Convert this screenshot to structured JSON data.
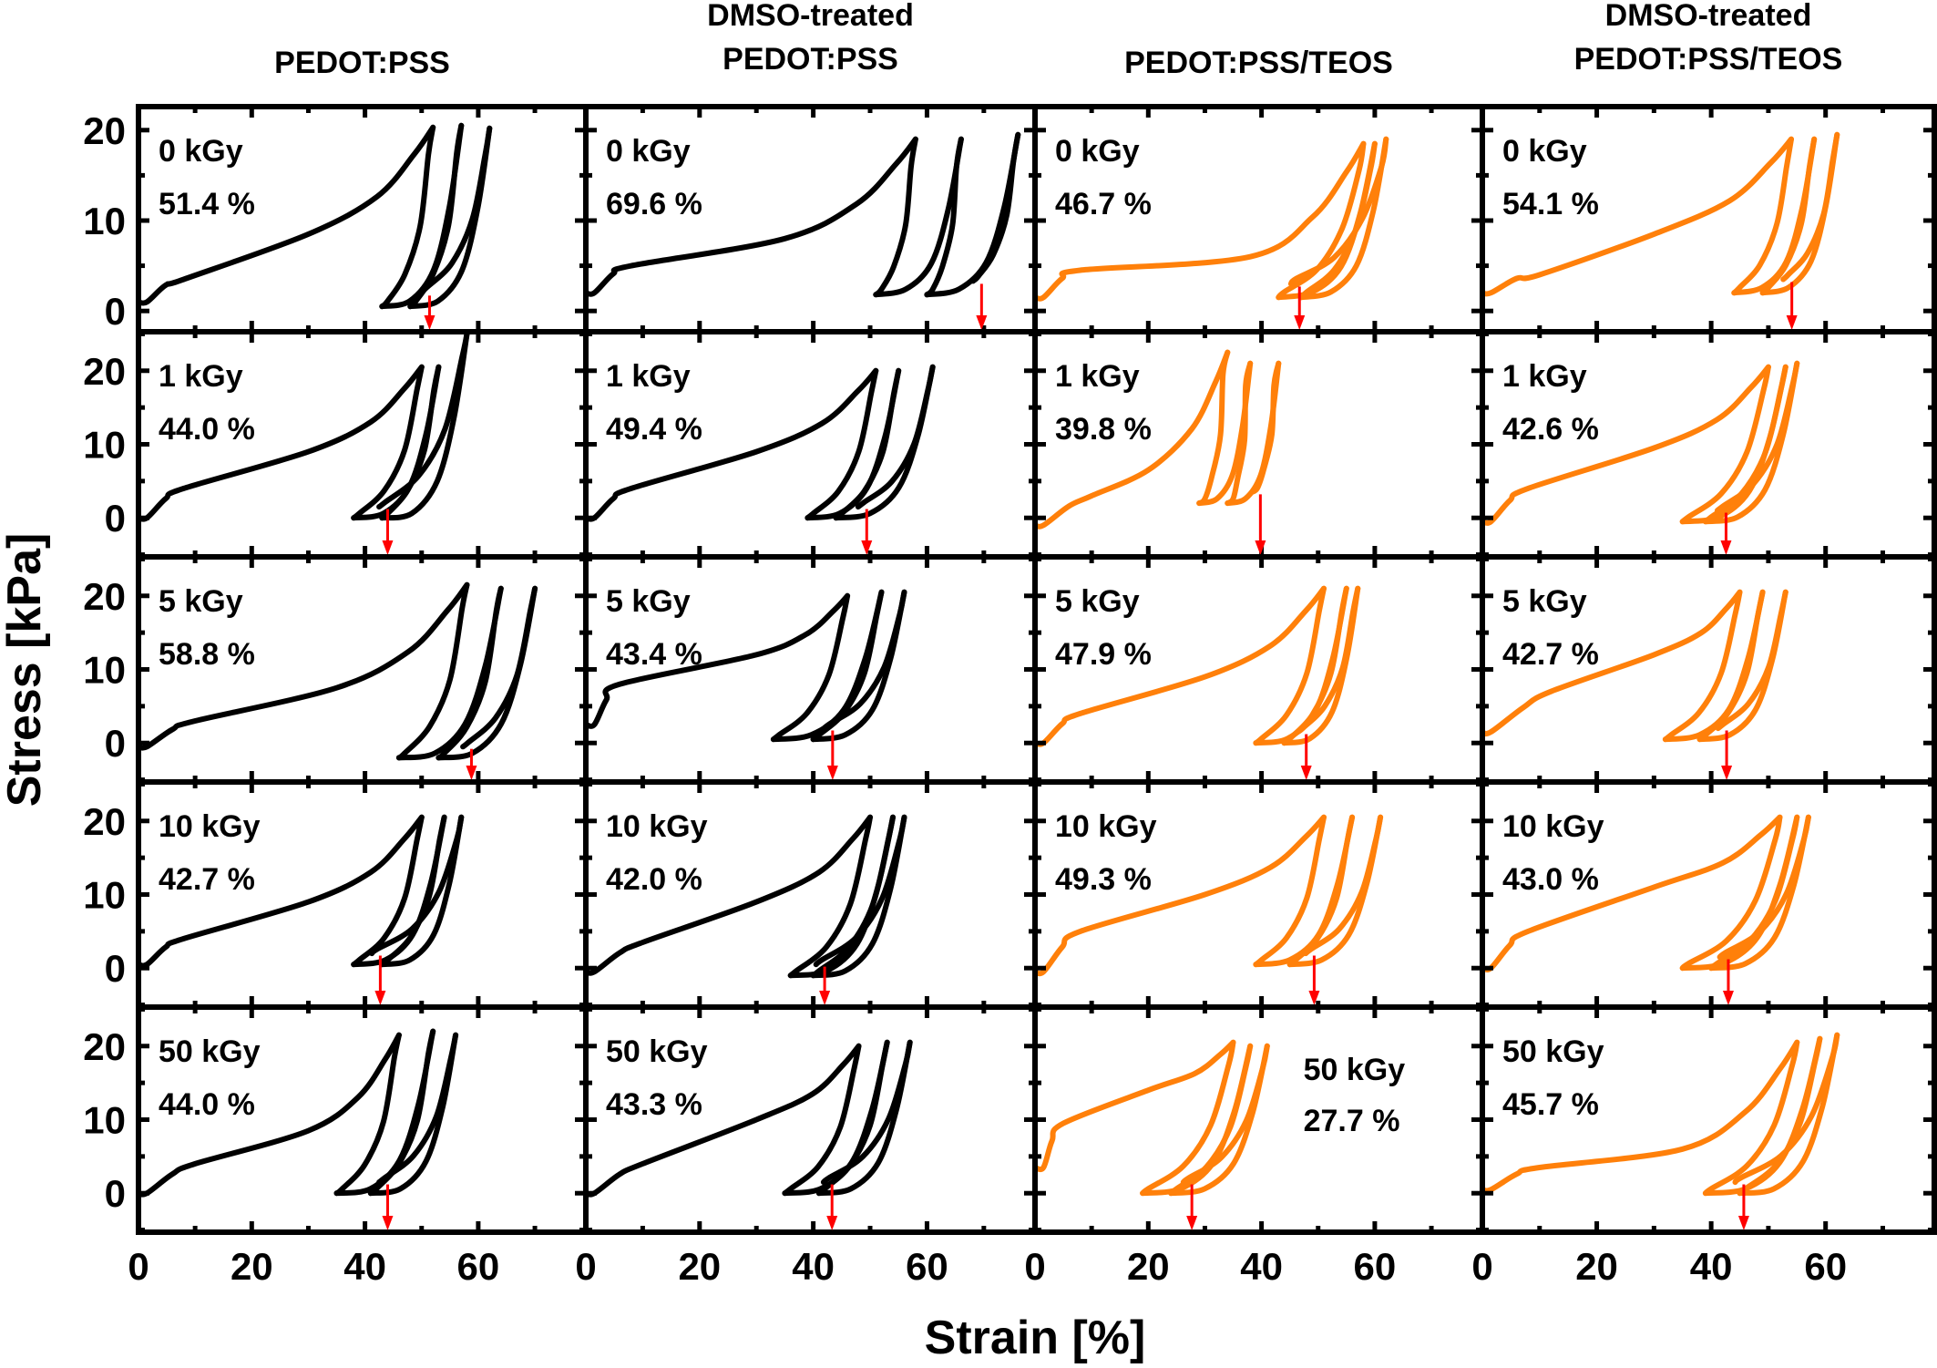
{
  "chart_data": {
    "type": "line",
    "title": "",
    "xlabel": "Strain [%]",
    "ylabel": "Stress [kPa]",
    "xlim": [
      0,
      79
    ],
    "xticks": [
      0,
      20,
      40,
      60
    ],
    "xminor_step": 10,
    "ylim_first_row": [
      -2.3,
      22.6
    ],
    "ylim_other_rows": [
      -5.3,
      25.3
    ],
    "yticks": [
      0,
      10,
      20
    ],
    "grid": false,
    "legend": "none",
    "colors": {
      "PEDOT:PSS": "#000000",
      "DMSO-treated PEDOT:PSS": "#000000",
      "PEDOT:PSS/TEOS": "#FF800A",
      "DMSO-treated PEDOT:PSS/TEOS": "#FF800A",
      "arrow": "#FF0000"
    },
    "columns": [
      {
        "title_lines": [
          "PEDOT:PSS"
        ],
        "color": "#000000"
      },
      {
        "title_lines": [
          "DMSO-treated",
          "PEDOT:PSS"
        ],
        "color": "#000000"
      },
      {
        "title_lines": [
          "PEDOT:PSS/TEOS"
        ],
        "color": "#FF800A"
      },
      {
        "title_lines": [
          "DMSO-treated",
          "PEDOT:PSS/TEOS"
        ],
        "color": "#FF800A"
      }
    ],
    "rows": [
      "0 kGy",
      "1 kGy",
      "5 kGy",
      "10 kGy",
      "50 kGy"
    ],
    "panels": [
      [
        {
          "dose": "0 kGy",
          "recovery": "51.4 %",
          "recovery_strain": 51.4,
          "start_stress": 1.0,
          "knee": [
            8,
            3.5
          ],
          "mid": [
            30,
            8.5
          ],
          "peaks": [
            [
              52,
              20.3
            ],
            [
              57,
              20.5
            ],
            [
              62,
              20.2
            ]
          ],
          "valleys": [
            [
              43,
              0.5
            ],
            [
              48,
              0.5
            ]
          ],
          "annot_pos": "top-left"
        },
        {
          "dose": "1 kGy",
          "recovery": "44.0 %",
          "recovery_strain": 44.0,
          "start_stress": 0.0,
          "knee": [
            8,
            4
          ],
          "mid": [
            30,
            9
          ],
          "peaks": [
            [
              50,
              20.5
            ],
            [
              53,
              20.5
            ],
            [
              58,
              25
            ]
          ],
          "valleys": [
            [
              38,
              0
            ],
            [
              43,
              0
            ]
          ],
          "annot_pos": "top-left"
        },
        {
          "dose": "5 kGy",
          "recovery": "58.8 %",
          "recovery_strain": 58.8,
          "start_stress": -0.5,
          "knee": [
            10,
            3
          ],
          "mid": [
            35,
            7.5
          ],
          "peaks": [
            [
              58,
              21.5
            ],
            [
              64,
              21
            ],
            [
              70,
              21
            ]
          ],
          "valleys": [
            [
              46,
              -2
            ],
            [
              53,
              -2
            ]
          ],
          "annot_pos": "top-left"
        },
        {
          "dose": "10 kGy",
          "recovery": "42.7 %",
          "recovery_strain": 42.7,
          "start_stress": 0.5,
          "knee": [
            8,
            4
          ],
          "mid": [
            30,
            9
          ],
          "peaks": [
            [
              50,
              20.5
            ],
            [
              54,
              20.5
            ],
            [
              57,
              20.5
            ]
          ],
          "valleys": [
            [
              38,
              0.5
            ],
            [
              43,
              0.5
            ]
          ],
          "annot_pos": "top-left"
        },
        {
          "dose": "50 kGy",
          "recovery": "44.0 %",
          "recovery_strain": 44.0,
          "start_stress": 0.0,
          "knee": [
            10,
            4
          ],
          "mid": [
            30,
            8.5
          ],
          "peaks": [
            [
              46,
              21.5
            ],
            [
              52,
              22
            ],
            [
              56,
              21.5
            ]
          ],
          "valleys": [
            [
              35,
              0
            ],
            [
              41,
              0
            ]
          ],
          "annot_pos": "top-left"
        }
      ],
      [
        {
          "dose": "0 kGy",
          "recovery": "69.6 %",
          "recovery_strain": 69.6,
          "start_stress": 2.0,
          "knee": [
            8,
            5
          ],
          "mid": [
            35,
            8
          ],
          "peaks": [
            [
              58,
              19
            ],
            [
              66,
              19
            ],
            [
              76,
              19.5
            ]
          ],
          "valleys": [
            [
              51,
              1.8
            ],
            [
              60,
              1.8
            ]
          ],
          "annot_pos": "top-left"
        },
        {
          "dose": "1 kGy",
          "recovery": "49.4 %",
          "recovery_strain": 49.4,
          "start_stress": 0.0,
          "knee": [
            8,
            4
          ],
          "mid": [
            30,
            9
          ],
          "peaks": [
            [
              51,
              20
            ],
            [
              55,
              20
            ],
            [
              61,
              20.5
            ]
          ],
          "valleys": [
            [
              39,
              0
            ],
            [
              44,
              0
            ]
          ],
          "annot_pos": "top-left"
        },
        {
          "dose": "5 kGy",
          "recovery": "43.4 %",
          "recovery_strain": 43.4,
          "start_stress": 2.5,
          "knee": [
            6,
            8
          ],
          "mid": [
            30,
            12
          ],
          "peaks": [
            [
              46,
              20
            ],
            [
              52,
              20.5
            ],
            [
              56,
              20.5
            ]
          ],
          "valleys": [
            [
              33,
              0.5
            ],
            [
              40,
              0.5
            ]
          ],
          "annot_pos": "top-left"
        },
        {
          "dose": "10 kGy",
          "recovery": "42.0 %",
          "recovery_strain": 42.0,
          "start_stress": -0.5,
          "knee": [
            10,
            3.5
          ],
          "mid": [
            30,
            9
          ],
          "peaks": [
            [
              50,
              20.5
            ],
            [
              54,
              20.5
            ],
            [
              56,
              20.5
            ]
          ],
          "valleys": [
            [
              36,
              -1
            ],
            [
              40,
              -1
            ]
          ],
          "annot_pos": "top-left"
        },
        {
          "dose": "50 kGy",
          "recovery": "43.3 %",
          "recovery_strain": 43.3,
          "start_stress": 0.0,
          "knee": [
            10,
            4
          ],
          "mid": [
            30,
            10
          ],
          "peaks": [
            [
              48,
              20
            ],
            [
              53,
              20.5
            ],
            [
              57,
              20.5
            ]
          ],
          "valleys": [
            [
              35,
              0
            ],
            [
              41,
              0
            ]
          ],
          "annot_pos": "top-left"
        }
      ],
      [
        {
          "dose": "0 kGy",
          "recovery": "46.7 %",
          "recovery_strain": 46.7,
          "start_stress": 1.5,
          "knee": [
            8,
            4.5
          ],
          "mid": [
            38,
            6
          ],
          "peaks": [
            [
              58,
              18.5
            ],
            [
              60,
              18.5
            ],
            [
              62,
              19
            ]
          ],
          "valleys": [
            [
              43,
              1.5
            ],
            [
              47,
              1.5
            ]
          ],
          "annot_pos": "top-left"
        },
        {
          "dose": "1 kGy",
          "recovery": "39.8 %",
          "recovery_strain": 39.8,
          "start_stress": -1.0,
          "knee": [
            10,
            3
          ],
          "mid": [
            20,
            6.5
          ],
          "peaks": [
            [
              34,
              22.5
            ],
            [
              38,
              21
            ],
            [
              43,
              21
            ]
          ],
          "valleys": [
            [
              29,
              2
            ],
            [
              34,
              2
            ]
          ],
          "annot_pos": "top-left"
        },
        {
          "dose": "5 kGy",
          "recovery": "47.9 %",
          "recovery_strain": 47.9,
          "start_stress": 0.0,
          "knee": [
            8,
            4
          ],
          "mid": [
            30,
            9
          ],
          "peaks": [
            [
              51,
              21
            ],
            [
              55,
              21
            ],
            [
              57,
              21
            ]
          ],
          "valleys": [
            [
              39,
              0
            ],
            [
              44,
              0
            ]
          ],
          "annot_pos": "top-left"
        },
        {
          "dose": "10 kGy",
          "recovery": "49.3 %",
          "recovery_strain": 49.3,
          "start_stress": -0.5,
          "knee": [
            8,
            5
          ],
          "mid": [
            30,
            10
          ],
          "peaks": [
            [
              51,
              20.5
            ],
            [
              56,
              20.5
            ],
            [
              61,
              20.5
            ]
          ],
          "valleys": [
            [
              39,
              0.5
            ],
            [
              45,
              0.5
            ]
          ],
          "annot_pos": "top-left"
        },
        {
          "dose": "50 kGy",
          "recovery": "27.7 %",
          "recovery_strain": 27.7,
          "start_stress": 3.5,
          "knee": [
            5,
            9.5
          ],
          "mid": [
            20,
            14
          ],
          "peaks": [
            [
              35,
              20.5
            ],
            [
              38,
              20
            ],
            [
              41,
              20
            ]
          ],
          "valleys": [
            [
              19,
              0
            ],
            [
              24,
              0
            ]
          ],
          "annot_pos": "top-right"
        }
      ],
      [
        {
          "dose": "0 kGy",
          "recovery": "54.1 %",
          "recovery_strain": 54.1,
          "start_stress": 2.0,
          "knee": [
            10,
            4
          ],
          "mid": [
            30,
            8.5
          ],
          "peaks": [
            [
              54,
              19
            ],
            [
              58,
              19
            ],
            [
              62,
              19.5
            ]
          ],
          "valleys": [
            [
              44,
              2
            ],
            [
              49,
              2
            ]
          ],
          "annot_pos": "top-left"
        },
        {
          "dose": "1 kGy",
          "recovery": "42.6 %",
          "recovery_strain": 42.6,
          "start_stress": -0.5,
          "knee": [
            8,
            4
          ],
          "mid": [
            30,
            9.5
          ],
          "peaks": [
            [
              50,
              20.5
            ],
            [
              53,
              20.5
            ],
            [
              55,
              21
            ]
          ],
          "valleys": [
            [
              35,
              -0.5
            ],
            [
              39,
              -0.5
            ]
          ],
          "annot_pos": "top-left"
        },
        {
          "dose": "5 kGy",
          "recovery": "42.7 %",
          "recovery_strain": 42.7,
          "start_stress": 1.5,
          "knee": [
            12,
            7
          ],
          "mid": [
            30,
            12
          ],
          "peaks": [
            [
              45,
              20.5
            ],
            [
              49,
              20.5
            ],
            [
              53,
              20.5
            ]
          ],
          "valleys": [
            [
              32,
              0.5
            ],
            [
              38,
              0.5
            ]
          ],
          "annot_pos": "top-left"
        },
        {
          "dose": "10 kGy",
          "recovery": "43.0 %",
          "recovery_strain": 43.0,
          "start_stress": 0.0,
          "knee": [
            8,
            5
          ],
          "mid": [
            30,
            11
          ],
          "peaks": [
            [
              52,
              20.5
            ],
            [
              55,
              20.5
            ],
            [
              57,
              20.5
            ]
          ],
          "valleys": [
            [
              35,
              0
            ],
            [
              40,
              0
            ]
          ],
          "annot_pos": "top-left"
        },
        {
          "dose": "50 kGy",
          "recovery": "45.7 %",
          "recovery_strain": 45.7,
          "start_stress": 0.5,
          "knee": [
            10,
            3.5
          ],
          "mid": [
            35,
            6
          ],
          "peaks": [
            [
              55,
              20.5
            ],
            [
              59,
              21
            ],
            [
              62,
              21.5
            ]
          ],
          "valleys": [
            [
              39,
              0
            ],
            [
              45,
              0
            ]
          ],
          "annot_pos": "top-left"
        }
      ]
    ]
  }
}
